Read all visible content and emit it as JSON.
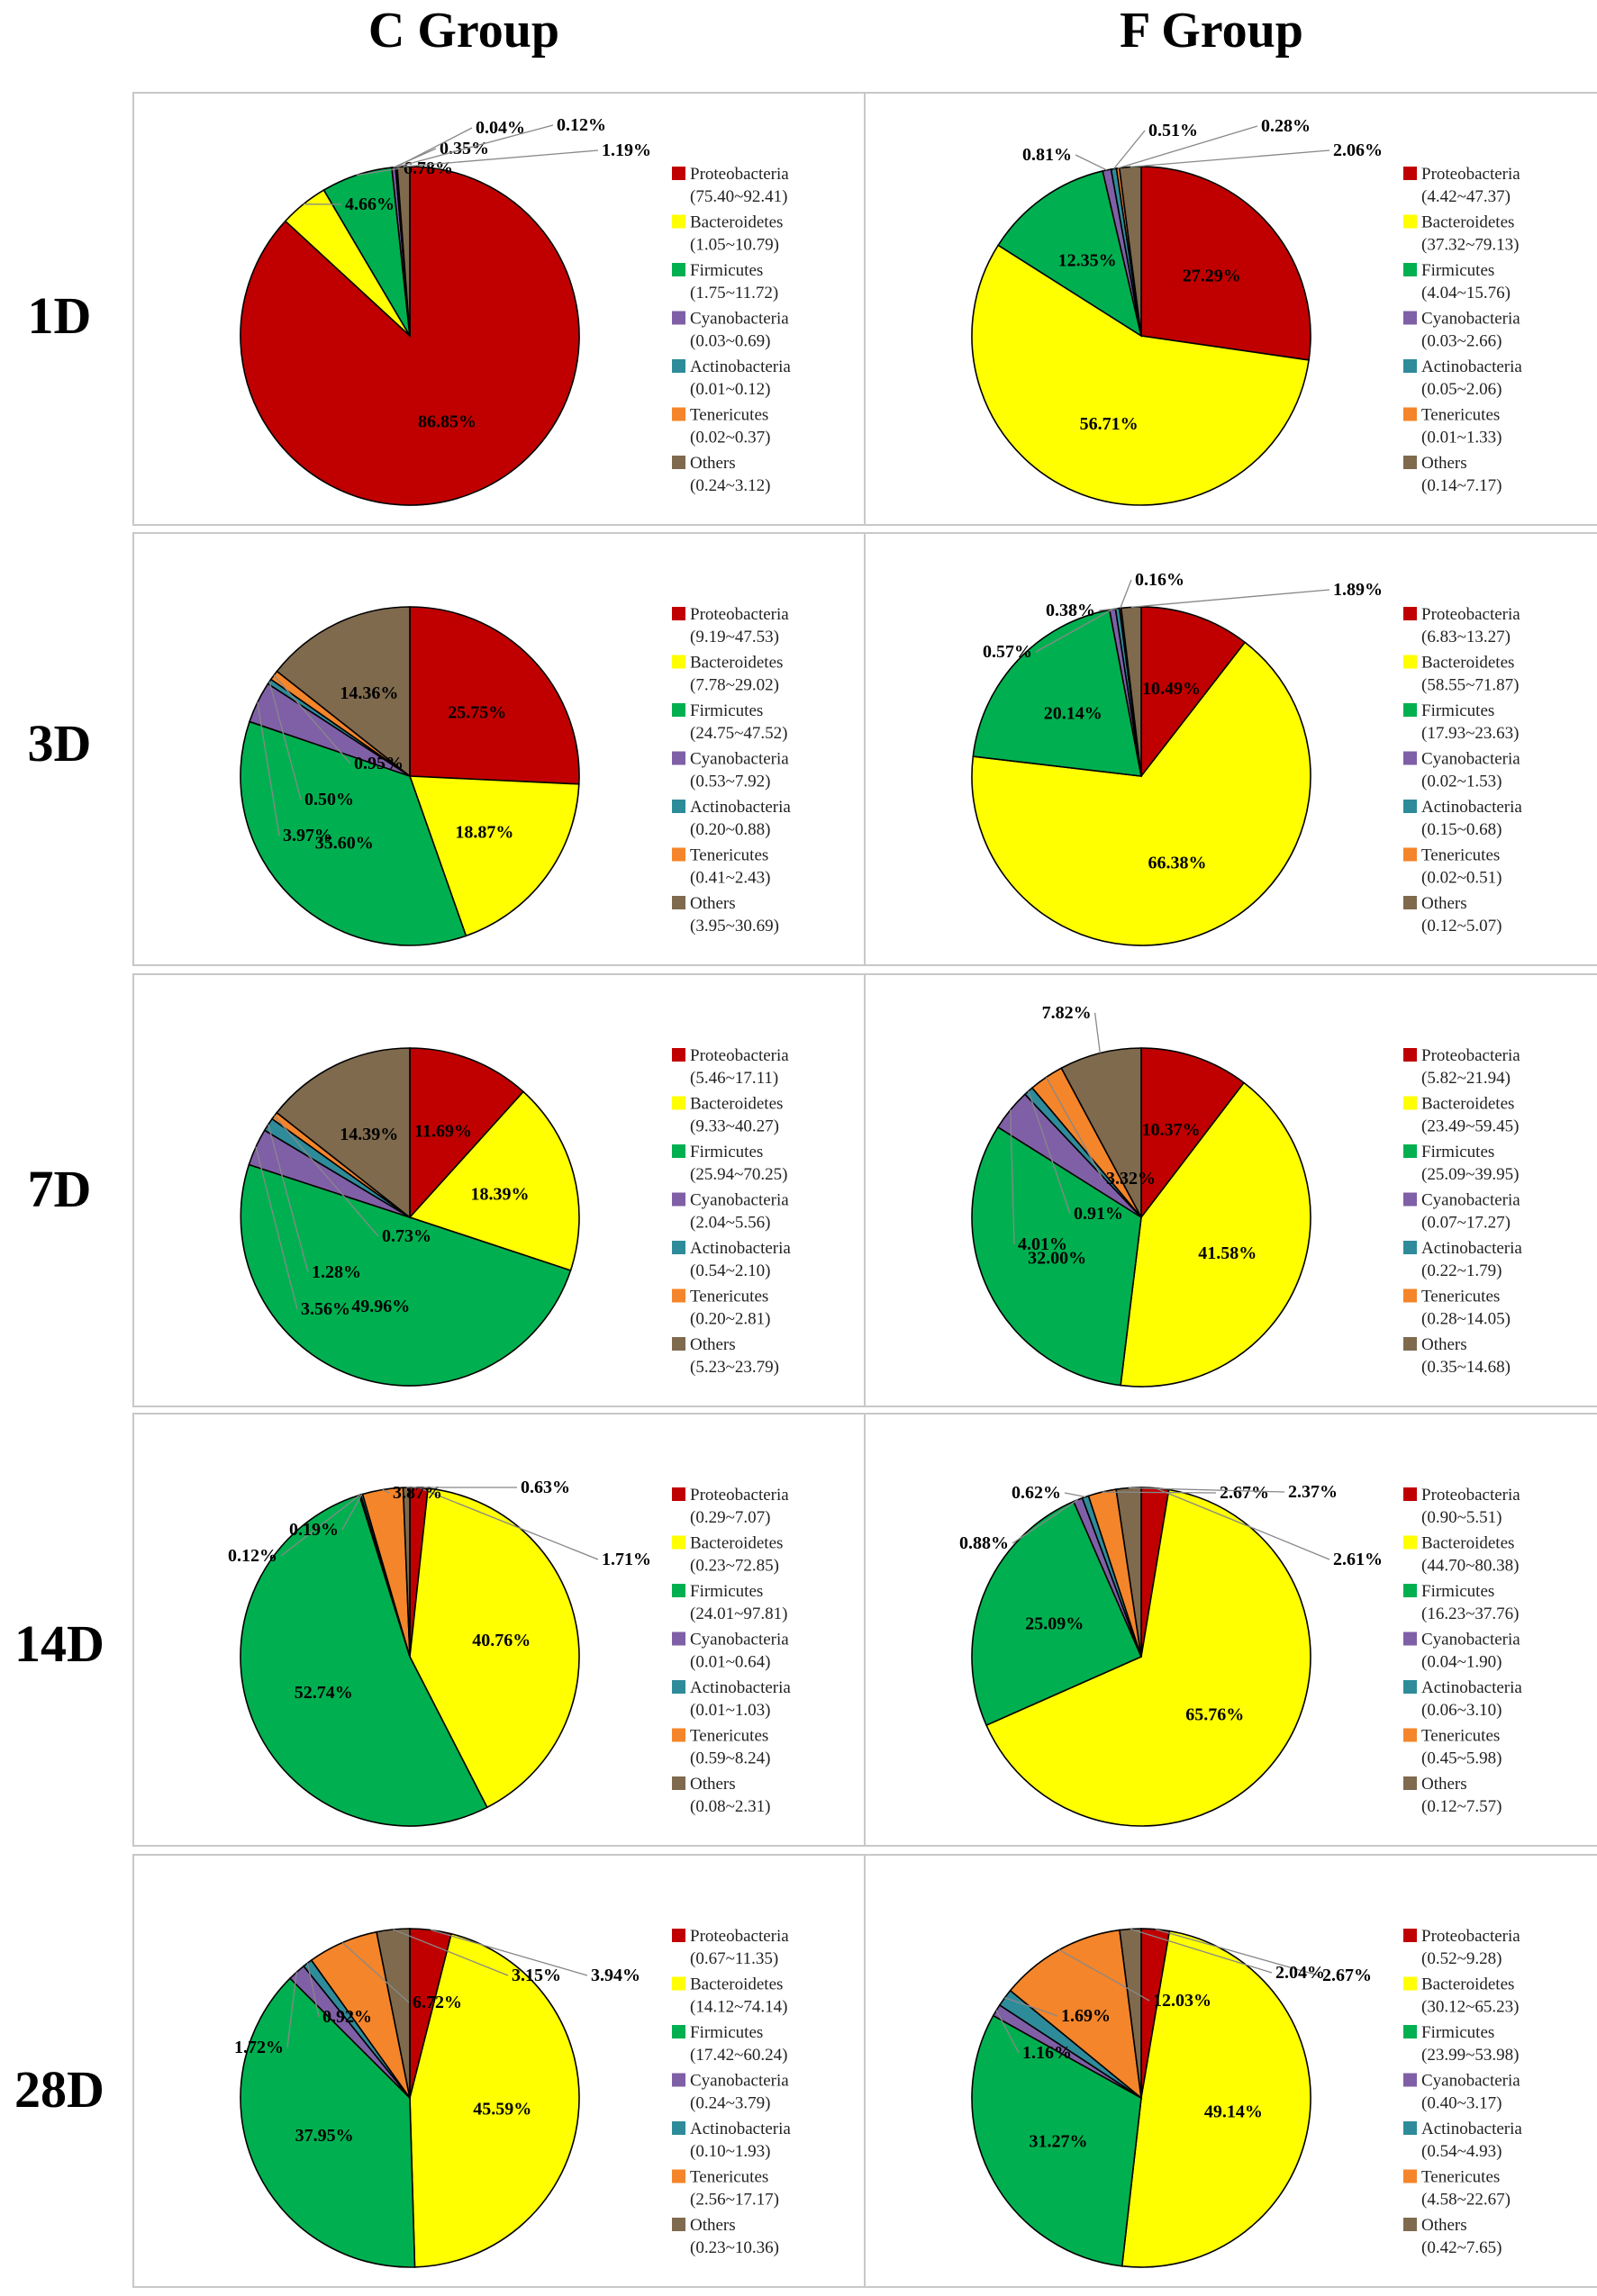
{
  "column_titles": [
    "C Group",
    "F Group"
  ],
  "row_labels": [
    "1D",
    "3D",
    "7D",
    "14D",
    "28D"
  ],
  "colors": {
    "Proteobacteria": "#c00000",
    "Bacteroidetes": "#ffff00",
    "Firmicutes": "#00b050",
    "Cyanobacteria": "#7f5fa6",
    "Actinobacteria": "#2e8b9a",
    "Tenericutes": "#f4852a",
    "Others": "#7f6a4e"
  },
  "chart_data": [
    {
      "type": "pie",
      "group": "C Group",
      "day": "1D",
      "categories": [
        "Proteobacteria",
        "Bacteroidetes",
        "Firmicutes",
        "Cyanobacteria",
        "Actinobacteria",
        "Tenericutes",
        "Others"
      ],
      "values": [
        86.85,
        4.66,
        6.78,
        0.35,
        0.04,
        0.12,
        1.19
      ],
      "labels": [
        "86.85%",
        "4.66%",
        "6.78%",
        "0.35%",
        "0.04%",
        "0.12%",
        "1.19%"
      ],
      "ranges": [
        "(75.40~92.41)",
        "(1.05~10.79)",
        "(1.75~11.72)",
        "(0.03~0.69)",
        "(0.01~0.12)",
        "(0.02~0.37)",
        "(0.24~3.12)"
      ]
    },
    {
      "type": "pie",
      "group": "F Group",
      "day": "1D",
      "categories": [
        "Proteobacteria",
        "Bacteroidetes",
        "Firmicutes",
        "Cyanobacteria",
        "Actinobacteria",
        "Tenericutes",
        "Others"
      ],
      "values": [
        27.29,
        56.71,
        12.35,
        0.81,
        0.51,
        0.28,
        2.06
      ],
      "labels": [
        "27.29%",
        "56.71%",
        "12.35%",
        "0.81%",
        "0.51%",
        "0.28%",
        "2.06%"
      ],
      "ranges": [
        "(4.42~47.37)",
        "(37.32~79.13)",
        "(4.04~15.76)",
        "(0.03~2.66)",
        "(0.05~2.06)",
        "(0.01~1.33)",
        "(0.14~7.17)"
      ]
    },
    {
      "type": "pie",
      "group": "C Group",
      "day": "3D",
      "categories": [
        "Proteobacteria",
        "Bacteroidetes",
        "Firmicutes",
        "Cyanobacteria",
        "Actinobacteria",
        "Tenericutes",
        "Others"
      ],
      "values": [
        25.75,
        18.87,
        35.6,
        3.97,
        0.5,
        0.95,
        14.36
      ],
      "labels": [
        "25.75%",
        "18.87%",
        "35.60%",
        "3.97%",
        "0.50%",
        "0.95%",
        "14.36%"
      ],
      "ranges": [
        "(9.19~47.53)",
        "(7.78~29.02)",
        "(24.75~47.52)",
        "(0.53~7.92)",
        "(0.20~0.88)",
        "(0.41~2.43)",
        "(3.95~30.69)"
      ]
    },
    {
      "type": "pie",
      "group": "F Group",
      "day": "3D",
      "categories": [
        "Proteobacteria",
        "Bacteroidetes",
        "Firmicutes",
        "Cyanobacteria",
        "Actinobacteria",
        "Tenericutes",
        "Others"
      ],
      "values": [
        10.49,
        66.38,
        20.14,
        0.57,
        0.38,
        0.16,
        1.89
      ],
      "labels": [
        "10.49%",
        "66.38%",
        "20.14%",
        "0.57%",
        "0.38%",
        "0.16%",
        "1.89%"
      ],
      "ranges": [
        "(6.83~13.27)",
        "(58.55~71.87)",
        "(17.93~23.63)",
        "(0.02~1.53)",
        "(0.15~0.68)",
        "(0.02~0.51)",
        "(0.12~5.07)"
      ]
    },
    {
      "type": "pie",
      "group": "C Group",
      "day": "7D",
      "categories": [
        "Proteobacteria",
        "Bacteroidetes",
        "Firmicutes",
        "Cyanobacteria",
        "Actinobacteria",
        "Tenericutes",
        "Others"
      ],
      "values": [
        11.69,
        18.39,
        49.96,
        3.56,
        1.28,
        0.73,
        14.39
      ],
      "labels": [
        "11.69%",
        "18.39%",
        "49.96%",
        "3.56%",
        "1.28%",
        "0.73%",
        "14.39%"
      ],
      "ranges": [
        "(5.46~17.11)",
        "(9.33~40.27)",
        "(25.94~70.25)",
        "(2.04~5.56)",
        "(0.54~2.10)",
        "(0.20~2.81)",
        "(5.23~23.79)"
      ]
    },
    {
      "type": "pie",
      "group": "F Group",
      "day": "7D",
      "categories": [
        "Proteobacteria",
        "Bacteroidetes",
        "Firmicutes",
        "Cyanobacteria",
        "Actinobacteria",
        "Tenericutes",
        "Others"
      ],
      "values": [
        10.37,
        41.58,
        32.0,
        4.01,
        0.91,
        3.32,
        7.82
      ],
      "labels": [
        "10.37%",
        "41.58%",
        "32.00%",
        "4.01%",
        "0.91%",
        "3.32%",
        "7.82%"
      ],
      "ranges": [
        "(5.82~21.94)",
        "(23.49~59.45)",
        "(25.09~39.95)",
        "(0.07~17.27)",
        "(0.22~1.79)",
        "(0.28~14.05)",
        "(0.35~14.68)"
      ]
    },
    {
      "type": "pie",
      "group": "C Group",
      "day": "14D",
      "categories": [
        "Proteobacteria",
        "Bacteroidetes",
        "Firmicutes",
        "Cyanobacteria",
        "Actinobacteria",
        "Tenericutes",
        "Others"
      ],
      "values": [
        1.71,
        40.76,
        52.74,
        0.12,
        0.19,
        3.87,
        0.63
      ],
      "labels": [
        "1.71%",
        "40.76%",
        "52.74%",
        "0.12%",
        "0.19%",
        "3.87%",
        "0.63%"
      ],
      "ranges": [
        "(0.29~7.07)",
        "(0.23~72.85)",
        "(24.01~97.81)",
        "(0.01~0.64)",
        "(0.01~1.03)",
        "(0.59~8.24)",
        "(0.08~2.31)"
      ]
    },
    {
      "type": "pie",
      "group": "F Group",
      "day": "14D",
      "categories": [
        "Proteobacteria",
        "Bacteroidetes",
        "Firmicutes",
        "Cyanobacteria",
        "Actinobacteria",
        "Tenericutes",
        "Others"
      ],
      "values": [
        2.61,
        65.76,
        25.09,
        0.88,
        0.62,
        2.67,
        2.37
      ],
      "labels": [
        "2.61%",
        "65.76%",
        "25.09%",
        "0.88%",
        "0.62%",
        "2.67%",
        "2.37%"
      ],
      "ranges": [
        "(0.90~5.51)",
        "(44.70~80.38)",
        "(16.23~37.76)",
        "(0.04~1.90)",
        "(0.06~3.10)",
        "(0.45~5.98)",
        "(0.12~7.57)"
      ]
    },
    {
      "type": "pie",
      "group": "C Group",
      "day": "28D",
      "categories": [
        "Proteobacteria",
        "Bacteroidetes",
        "Firmicutes",
        "Cyanobacteria",
        "Actinobacteria",
        "Tenericutes",
        "Others"
      ],
      "values": [
        3.94,
        45.59,
        37.95,
        1.72,
        0.92,
        6.72,
        3.15
      ],
      "labels": [
        "3.94%",
        "45.59%",
        "37.95%",
        "1.72%",
        "0.92%",
        "6.72%",
        "3.15%"
      ],
      "ranges": [
        "(0.67~11.35)",
        "(14.12~74.14)",
        "(17.42~60.24)",
        "(0.24~3.79)",
        "(0.10~1.93)",
        "(2.56~17.17)",
        "(0.23~10.36)"
      ]
    },
    {
      "type": "pie",
      "group": "F Group",
      "day": "28D",
      "categories": [
        "Proteobacteria",
        "Bacteroidetes",
        "Firmicutes",
        "Cyanobacteria",
        "Actinobacteria",
        "Tenericutes",
        "Others"
      ],
      "values": [
        2.67,
        49.14,
        31.27,
        1.16,
        1.69,
        12.03,
        2.04
      ],
      "labels": [
        "2.67%",
        "49.14%",
        "31.27%",
        "1.16%",
        "1.69%",
        "12.03%",
        "2.04%"
      ],
      "ranges": [
        "(0.52~9.28)",
        "(30.12~65.23)",
        "(23.99~53.98)",
        "(0.40~3.17)",
        "(0.54~4.93)",
        "(4.58~22.67)",
        "(0.42~7.65)"
      ]
    }
  ]
}
